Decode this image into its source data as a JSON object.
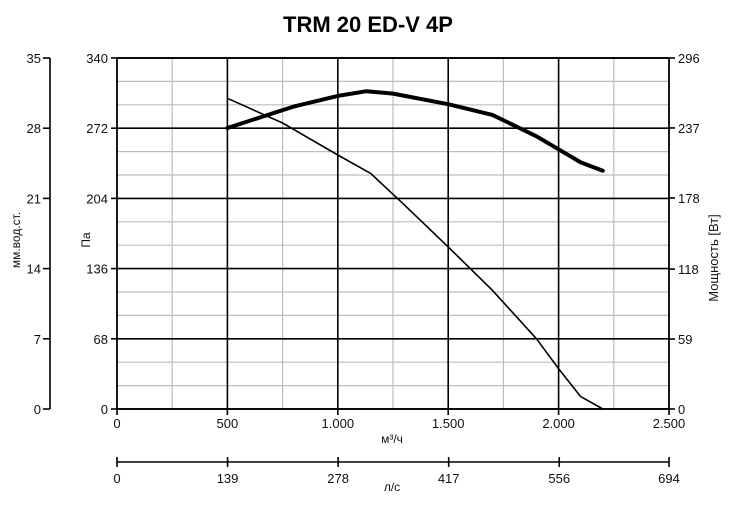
{
  "chart_data": {
    "type": "line",
    "title": "TRM 20 ED-V 4P",
    "x_axis": {
      "label": "м³/ч",
      "range": [
        0,
        2500
      ],
      "ticks": [
        0,
        500,
        1000,
        1500,
        2000,
        2500
      ],
      "tick_labels": [
        "0",
        "500",
        "1.000",
        "1.500",
        "2.000",
        "2.500"
      ]
    },
    "x2_axis": {
      "label": "л/с",
      "range": [
        0,
        694
      ],
      "ticks": [
        0,
        139,
        278,
        417,
        556,
        694
      ],
      "tick_labels": [
        "0",
        "139",
        "278",
        "417",
        "556",
        "694"
      ]
    },
    "y_left_inner": {
      "label": "Па",
      "range": [
        0,
        340
      ],
      "ticks": [
        0,
        68,
        136,
        204,
        272,
        340
      ],
      "tick_labels": [
        "0",
        "68",
        "136",
        "204",
        "272",
        "340"
      ]
    },
    "y_left_outer": {
      "label": "мм.вод.ст.",
      "range": [
        0,
        35
      ],
      "ticks": [
        0,
        7,
        14,
        21,
        28,
        35
      ],
      "tick_labels": [
        "0",
        "7",
        "14",
        "21",
        "28",
        "35"
      ]
    },
    "y_right": {
      "label": "Мощность [Вт]",
      "range": [
        0,
        296
      ],
      "ticks": [
        0,
        59,
        118,
        178,
        237,
        296
      ],
      "tick_labels": [
        "0",
        "59",
        "118",
        "178",
        "237",
        "296"
      ]
    },
    "grid": true,
    "series": [
      {
        "axis": "pressure",
        "stroke_width": "thin",
        "x": [
          500,
          750,
          1000,
          1150,
          1300,
          1500,
          1700,
          1900,
          2000,
          2100,
          2200
        ],
        "y": [
          301,
          277,
          246,
          228,
          198,
          157,
          115,
          68,
          39,
          12,
          0
        ]
      },
      {
        "axis": "power",
        "stroke_width": "thick",
        "x": [
          500,
          800,
          1000,
          1130,
          1250,
          1500,
          1700,
          1900,
          2000,
          2100,
          2200
        ],
        "y": [
          237,
          255,
          264,
          268,
          266,
          257,
          248,
          230,
          219,
          208,
          201
        ]
      }
    ]
  }
}
